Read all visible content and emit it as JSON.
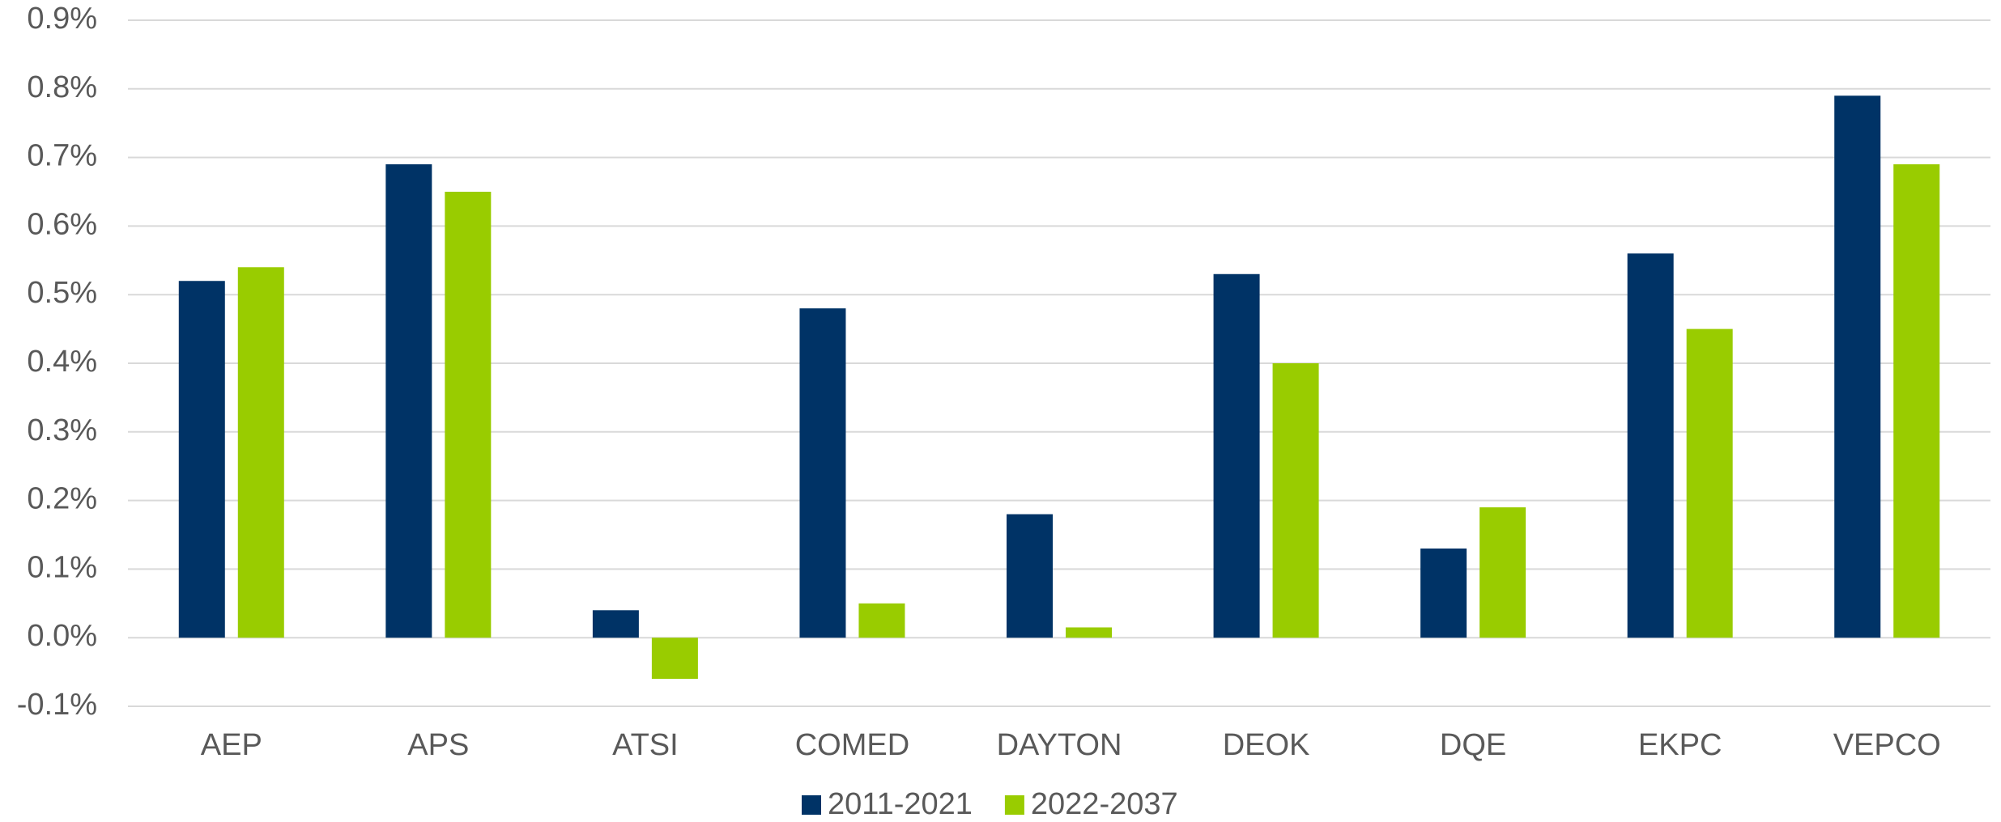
{
  "chart_data": {
    "type": "bar",
    "categories": [
      "AEP",
      "APS",
      "ATSI",
      "COMED",
      "DAYTON",
      "DEOK",
      "DQE",
      "EKPC",
      "VEPCO"
    ],
    "series": [
      {
        "name": "2011-2021",
        "color": "#003366",
        "values": [
          0.52,
          0.69,
          0.04,
          0.48,
          0.18,
          0.53,
          0.13,
          0.56,
          0.79
        ]
      },
      {
        "name": "2022-2037",
        "color": "#99cc00",
        "values": [
          0.54,
          0.65,
          -0.06,
          0.05,
          0.015,
          0.4,
          0.19,
          0.45,
          0.69
        ]
      }
    ],
    "ylim": [
      -0.1,
      0.9
    ],
    "yticks": [
      {
        "value": -0.1,
        "label": "-0.1%"
      },
      {
        "value": 0,
        "label": "0.0%"
      },
      {
        "value": 0.1,
        "label": "0.1%"
      },
      {
        "value": 0.2,
        "label": "0.2%"
      },
      {
        "value": 0.3,
        "label": "0.3%"
      },
      {
        "value": 0.4,
        "label": "0.4%"
      },
      {
        "value": 0.5,
        "label": "0.5%"
      },
      {
        "value": 0.6,
        "label": "0.6%"
      },
      {
        "value": 0.7,
        "label": "0.7%"
      },
      {
        "value": 0.8,
        "label": "0.8%"
      },
      {
        "value": 0.9,
        "label": "0.9%"
      }
    ],
    "grid": true
  }
}
